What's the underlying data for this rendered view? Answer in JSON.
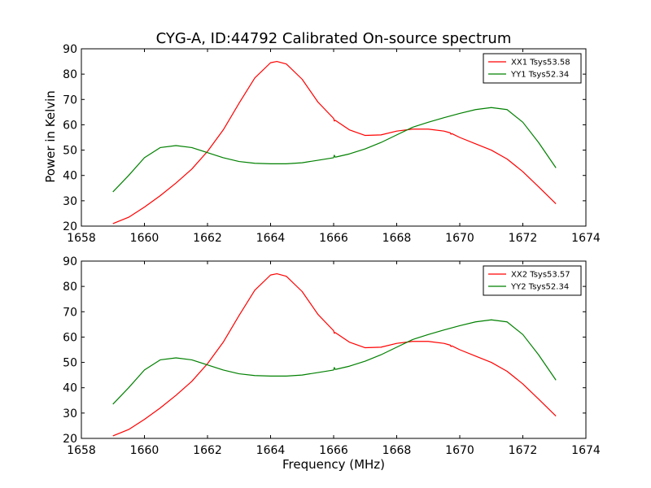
{
  "figure": {
    "title": "CYG-A, ID:44792 Calibrated On-source spectrum",
    "xlabel": "Frequency (MHz)",
    "ylabel": "Power in Kelvin"
  },
  "chart_data": [
    {
      "type": "line",
      "title": "CYG-A, ID:44792 Calibrated On-source spectrum",
      "xlabel": "",
      "ylabel": "Power in Kelvin",
      "xlim": [
        1658,
        1674
      ],
      "ylim": [
        20,
        90
      ],
      "xticks": [
        1658,
        1660,
        1662,
        1664,
        1666,
        1668,
        1670,
        1672,
        1674
      ],
      "yticks": [
        20,
        30,
        40,
        50,
        60,
        70,
        80,
        90
      ],
      "grid": false,
      "legend_position": "top-right",
      "series": [
        {
          "name": "XX1 Tsys53.58",
          "color": "#ff0000",
          "x": [
            1659.0,
            1659.5,
            1660.0,
            1660.5,
            1661.0,
            1661.5,
            1662.0,
            1662.5,
            1663.0,
            1663.5,
            1664.0,
            1664.2,
            1664.5,
            1665.0,
            1665.5,
            1666.0,
            1666.02,
            1666.05,
            1666.5,
            1667.0,
            1667.5,
            1668.0,
            1668.5,
            1669.0,
            1669.5,
            1669.7,
            1669.72,
            1669.75,
            1670.0,
            1670.5,
            1671.0,
            1671.5,
            1672.0,
            1672.5,
            1673.05
          ],
          "values": [
            21.0,
            23.5,
            27.5,
            32.0,
            37.0,
            42.5,
            49.5,
            58.0,
            68.5,
            78.5,
            84.5,
            85.0,
            84.0,
            78.0,
            69.0,
            62.5,
            61.5,
            61.8,
            58.0,
            55.8,
            56.0,
            57.5,
            58.3,
            58.3,
            57.5,
            56.8,
            56.3,
            56.5,
            55.0,
            52.5,
            50.0,
            46.5,
            41.5,
            35.5,
            28.8
          ]
        },
        {
          "name": "YY1 Tsys52.34",
          "color": "#008000",
          "x": [
            1659.0,
            1659.5,
            1660.0,
            1660.5,
            1661.0,
            1661.5,
            1662.0,
            1662.5,
            1663.0,
            1663.5,
            1664.0,
            1664.5,
            1665.0,
            1665.5,
            1666.0,
            1666.02,
            1666.05,
            1666.08,
            1666.5,
            1667.0,
            1667.5,
            1668.0,
            1668.5,
            1669.0,
            1669.5,
            1670.0,
            1670.5,
            1671.0,
            1671.5,
            1672.0,
            1672.5,
            1673.05
          ],
          "values": [
            33.5,
            40.0,
            47.0,
            51.0,
            51.8,
            51.0,
            49.0,
            47.0,
            45.5,
            44.8,
            44.6,
            44.6,
            45.0,
            46.0,
            47.0,
            48.0,
            47.2,
            47.3,
            48.5,
            50.5,
            53.0,
            56.0,
            59.0,
            61.0,
            62.8,
            64.5,
            66.0,
            66.8,
            66.0,
            61.0,
            53.0,
            43.0
          ]
        }
      ]
    },
    {
      "type": "line",
      "title": "",
      "xlabel": "Frequency (MHz)",
      "ylabel": "",
      "xlim": [
        1658,
        1674
      ],
      "ylim": [
        20,
        90
      ],
      "xticks": [
        1658,
        1660,
        1662,
        1664,
        1666,
        1668,
        1670,
        1672,
        1674
      ],
      "yticks": [
        20,
        30,
        40,
        50,
        60,
        70,
        80,
        90
      ],
      "grid": false,
      "legend_position": "top-right",
      "series": [
        {
          "name": "XX2 Tsys53.57",
          "color": "#ff0000",
          "x": [
            1659.0,
            1659.5,
            1660.0,
            1660.5,
            1661.0,
            1661.5,
            1662.0,
            1662.5,
            1663.0,
            1663.5,
            1664.0,
            1664.2,
            1664.5,
            1665.0,
            1665.5,
            1666.0,
            1666.02,
            1666.05,
            1666.5,
            1667.0,
            1667.5,
            1668.0,
            1668.5,
            1669.0,
            1669.5,
            1669.7,
            1669.72,
            1669.75,
            1670.0,
            1670.5,
            1671.0,
            1671.5,
            1672.0,
            1672.5,
            1673.05
          ],
          "values": [
            21.0,
            23.5,
            27.5,
            32.0,
            37.0,
            42.5,
            49.5,
            58.0,
            68.5,
            78.5,
            84.5,
            85.0,
            84.0,
            78.0,
            69.0,
            62.5,
            61.5,
            61.8,
            58.0,
            55.8,
            56.0,
            57.5,
            58.3,
            58.3,
            57.5,
            56.8,
            56.3,
            56.5,
            55.0,
            52.5,
            50.0,
            46.5,
            41.5,
            35.5,
            28.8
          ]
        },
        {
          "name": "YY2 Tsys52.34",
          "color": "#008000",
          "x": [
            1659.0,
            1659.5,
            1660.0,
            1660.5,
            1661.0,
            1661.5,
            1662.0,
            1662.5,
            1663.0,
            1663.5,
            1664.0,
            1664.5,
            1665.0,
            1665.5,
            1666.0,
            1666.02,
            1666.05,
            1666.08,
            1666.5,
            1667.0,
            1667.5,
            1668.0,
            1668.5,
            1669.0,
            1669.5,
            1670.0,
            1670.5,
            1671.0,
            1671.5,
            1672.0,
            1672.5,
            1673.05
          ],
          "values": [
            33.5,
            40.0,
            47.0,
            51.0,
            51.8,
            51.0,
            49.0,
            47.0,
            45.5,
            44.8,
            44.6,
            44.6,
            45.0,
            46.0,
            47.0,
            48.0,
            47.2,
            47.3,
            48.5,
            50.5,
            53.0,
            56.0,
            59.0,
            61.0,
            62.8,
            64.5,
            66.0,
            66.8,
            66.0,
            61.0,
            53.0,
            43.0
          ]
        }
      ]
    }
  ]
}
